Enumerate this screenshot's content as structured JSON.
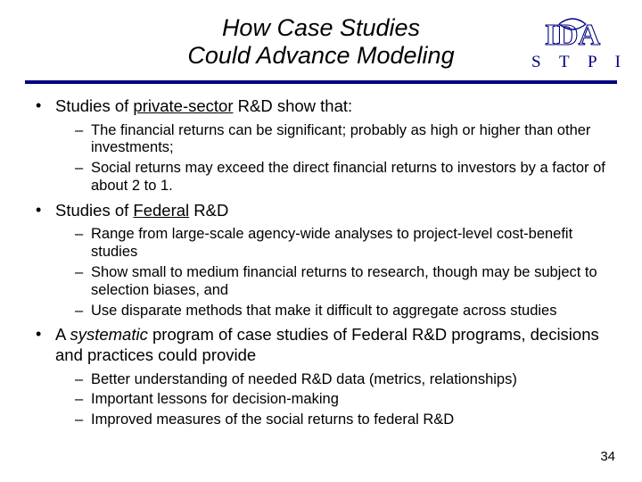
{
  "title_line1": "How Case Studies",
  "title_line2": "Could Advance Modeling",
  "logo": {
    "text": "IDA",
    "outline_color": "#000080",
    "fill_color": "#ffffff",
    "label": "S T P I",
    "label_color": "#000080"
  },
  "rule_color": "#000080",
  "bullets": [
    {
      "html": "Studies of <span class='u'>private-sector</span> R&D show that:",
      "sub": [
        "The financial returns can be significant; probably as high or higher than other investments;",
        "Social returns may exceed the direct financial returns to investors by a factor of about 2 to 1."
      ]
    },
    {
      "html": "Studies of <span class='u'>Federal</span> R&D",
      "sub": [
        "Range from large-scale agency-wide analyses to project-level cost-benefit studies",
        "Show small to medium financial returns to research, though may be subject to selection biases, and",
        "Use disparate methods that make it difficult to aggregate across studies"
      ]
    },
    {
      "html": "A <span class='i'>systematic</span> program of case studies of Federal R&D programs, decisions and practices could provide",
      "sub": [
        "Better understanding of needed R&D data (metrics, relationships)",
        "Important lessons for decision-making",
        "Improved measures of the social returns to federal R&D"
      ]
    }
  ],
  "page_number": "34",
  "fonts": {
    "title_size_pt": 27,
    "b1_size_pt": 18.5,
    "b2_size_pt": 16.5
  },
  "colors": {
    "background": "#ffffff",
    "text": "#000000",
    "accent": "#000080"
  }
}
